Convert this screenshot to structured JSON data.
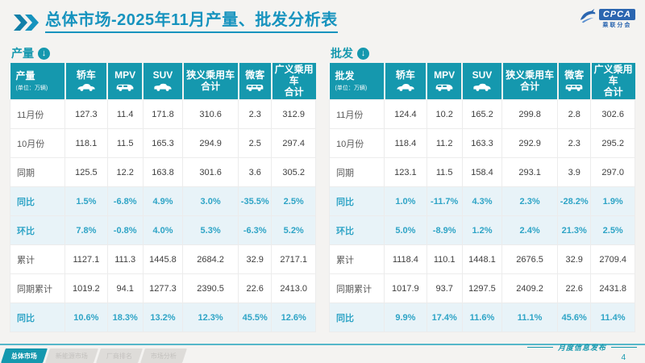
{
  "header": {
    "title_main": "总体市场",
    "title_rest": "-2025年11月产量、批发分析表",
    "logo": {
      "text": "CPCA",
      "subtext": "乘联分会"
    }
  },
  "tables": [
    {
      "section_label": "产量",
      "first_col_label": "产量",
      "unit": "(单位：万辆)",
      "columns": [
        {
          "label": "轿车",
          "icon": "sedan-icon"
        },
        {
          "label": "MPV",
          "icon": "mpv-icon"
        },
        {
          "label": "SUV",
          "icon": "suv-icon"
        },
        {
          "label": "狭义乘用车",
          "label2": "合计"
        },
        {
          "label": "微客",
          "icon": "microvan-icon"
        },
        {
          "label": "广义乘用车",
          "label2": "合计"
        }
      ],
      "rows": [
        {
          "label": "11月份",
          "type": "normal",
          "values": [
            "127.3",
            "11.4",
            "171.8",
            "310.6",
            "2.3",
            "312.9"
          ]
        },
        {
          "label": "10月份",
          "type": "normal",
          "values": [
            "118.1",
            "11.5",
            "165.3",
            "294.9",
            "2.5",
            "297.4"
          ]
        },
        {
          "label": "同期",
          "type": "normal",
          "values": [
            "125.5",
            "12.2",
            "163.8",
            "301.6",
            "3.6",
            "305.2"
          ]
        },
        {
          "label": "同比",
          "type": "pct",
          "values": [
            "1.5%",
            "-6.8%",
            "4.9%",
            "3.0%",
            "-35.5%",
            "2.5%"
          ]
        },
        {
          "label": "环比",
          "type": "pct",
          "values": [
            "7.8%",
            "-0.8%",
            "4.0%",
            "5.3%",
            "-6.3%",
            "5.2%"
          ]
        },
        {
          "label": "累计",
          "type": "normal",
          "values": [
            "1127.1",
            "111.3",
            "1445.8",
            "2684.2",
            "32.9",
            "2717.1"
          ]
        },
        {
          "label": "同期累计",
          "type": "normal",
          "values": [
            "1019.2",
            "94.1",
            "1277.3",
            "2390.5",
            "22.6",
            "2413.0"
          ]
        },
        {
          "label": "同比",
          "type": "pct",
          "values": [
            "10.6%",
            "18.3%",
            "13.2%",
            "12.3%",
            "45.5%",
            "12.6%"
          ]
        }
      ]
    },
    {
      "section_label": "批发",
      "first_col_label": "批发",
      "unit": "(单位：万辆)",
      "columns": [
        {
          "label": "轿车",
          "icon": "sedan-icon"
        },
        {
          "label": "MPV",
          "icon": "mpv-icon"
        },
        {
          "label": "SUV",
          "icon": "suv-icon"
        },
        {
          "label": "狭义乘用车",
          "label2": "合计"
        },
        {
          "label": "微客",
          "icon": "microvan-icon"
        },
        {
          "label": "广义乘用车",
          "label2": "合计"
        }
      ],
      "rows": [
        {
          "label": "11月份",
          "type": "normal",
          "values": [
            "124.4",
            "10.2",
            "165.2",
            "299.8",
            "2.8",
            "302.6"
          ]
        },
        {
          "label": "10月份",
          "type": "normal",
          "values": [
            "118.4",
            "11.2",
            "163.3",
            "292.9",
            "2.3",
            "295.2"
          ]
        },
        {
          "label": "同期",
          "type": "normal",
          "values": [
            "123.1",
            "11.5",
            "158.4",
            "293.1",
            "3.9",
            "297.0"
          ]
        },
        {
          "label": "同比",
          "type": "pct",
          "values": [
            "1.0%",
            "-11.7%",
            "4.3%",
            "2.3%",
            "-28.2%",
            "1.9%"
          ]
        },
        {
          "label": "环比",
          "type": "pct",
          "values": [
            "5.0%",
            "-8.9%",
            "1.2%",
            "2.4%",
            "21.3%",
            "2.5%"
          ]
        },
        {
          "label": "累计",
          "type": "normal",
          "values": [
            "1118.4",
            "110.1",
            "1448.1",
            "2676.5",
            "32.9",
            "2709.4"
          ]
        },
        {
          "label": "同期累计",
          "type": "normal",
          "values": [
            "1017.9",
            "93.7",
            "1297.5",
            "2409.2",
            "22.6",
            "2431.8"
          ]
        },
        {
          "label": "同比",
          "type": "pct",
          "values": [
            "9.9%",
            "17.4%",
            "11.6%",
            "11.1%",
            "45.6%",
            "11.4%"
          ]
        }
      ]
    }
  ],
  "footer": {
    "tabs": [
      {
        "label": "总体市场",
        "active": true
      },
      {
        "label": "新能源市场",
        "active": false
      },
      {
        "label": "厂商排名",
        "active": false
      },
      {
        "label": "市场分析",
        "active": false
      }
    ],
    "caption": "月度信息发布",
    "page": "4"
  },
  "colors": {
    "accent": "#1598ae",
    "title": "#1693be",
    "pct_bg": "#e8f3f8",
    "pct_text": "#2ea4c6"
  }
}
